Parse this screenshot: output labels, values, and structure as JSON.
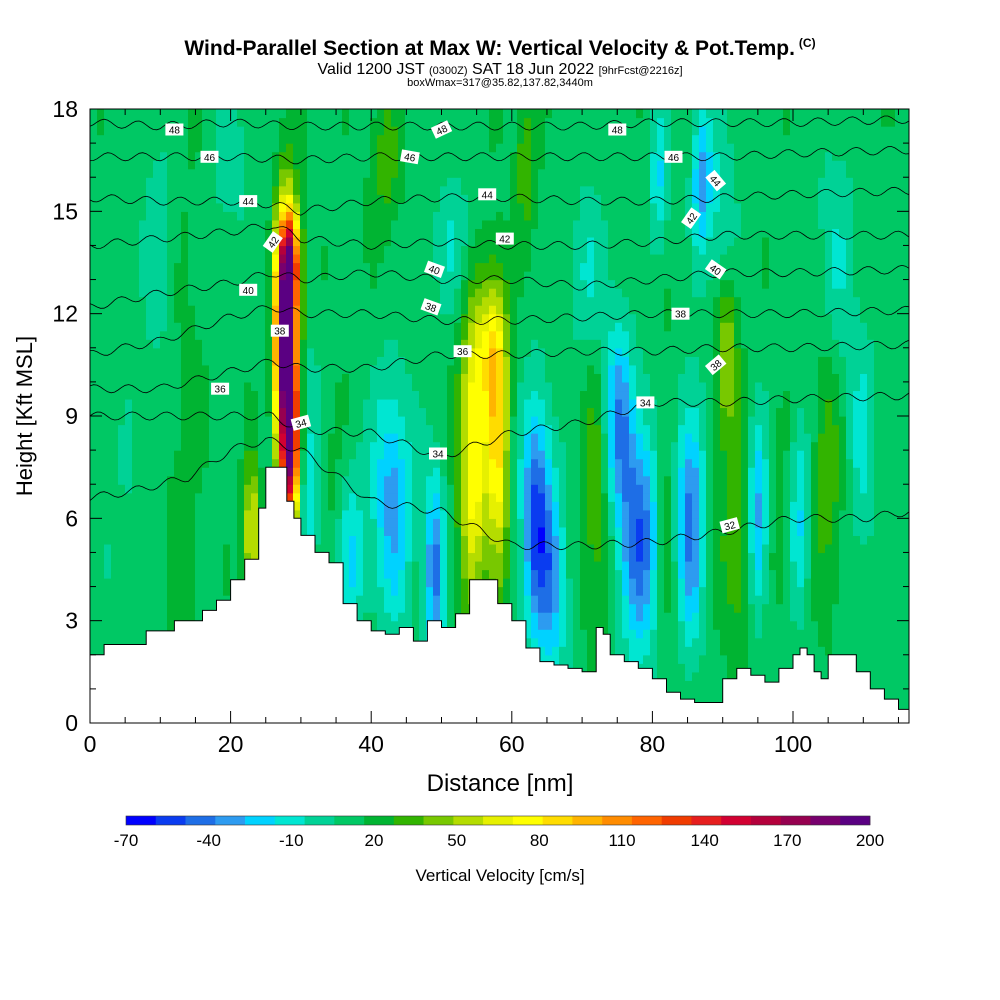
{
  "header": {
    "title": "Wind-Parallel Section at Max W: Vertical Velocity & Pot.Temp.",
    "copyright": "(C)",
    "valid_a": "Valid 1200 JST",
    "valid_b": "(0300Z)",
    "valid_c": "SAT 18 Jun 2022",
    "valid_d": "[9hrFcst@2216z]",
    "box": "boxWmax=317@35.82,137.82,3440m"
  },
  "chart_data": {
    "type": "heatmap",
    "xlabel": "Distance [nm]",
    "ylabel": "Height [Kft MSL]",
    "xlim": [
      0,
      116.5
    ],
    "ylim": [
      0,
      18
    ],
    "x_ticks": [
      0,
      20,
      40,
      60,
      80,
      100
    ],
    "y_ticks": [
      0,
      3,
      6,
      9,
      12,
      15,
      18
    ],
    "colorbar": {
      "label": "Vertical Velocity [cm/s]",
      "tick_labels": [
        "-70",
        "-40",
        "-10",
        "20",
        "50",
        "80",
        "110",
        "140",
        "170",
        "200"
      ],
      "min": -70,
      "max": 200,
      "colors": [
        "#0000ff",
        "#0a3cf0",
        "#1e6ee6",
        "#2d9bf0",
        "#00d2ff",
        "#00e6d2",
        "#00d296",
        "#00c864",
        "#00b432",
        "#32b400",
        "#78c800",
        "#b4dc00",
        "#e6f000",
        "#ffff00",
        "#ffdc00",
        "#ffb400",
        "#ff8c00",
        "#ff6400",
        "#f03c00",
        "#e61e1e",
        "#d20032",
        "#b4003c",
        "#960050",
        "#78006e",
        "#5a0082"
      ]
    },
    "terrain_height_kft": [
      [
        0,
        2.0
      ],
      [
        2,
        2.3
      ],
      [
        5,
        2.3
      ],
      [
        8,
        2.7
      ],
      [
        12,
        3.0
      ],
      [
        16,
        3.3
      ],
      [
        18,
        3.6
      ],
      [
        20,
        4.2
      ],
      [
        22,
        4.8
      ],
      [
        24,
        6.3
      ],
      [
        25,
        7.5
      ],
      [
        27,
        7.5
      ],
      [
        28,
        6.5
      ],
      [
        29,
        6.0
      ],
      [
        30,
        5.5
      ],
      [
        32,
        5.0
      ],
      [
        34,
        4.7
      ],
      [
        36,
        3.5
      ],
      [
        38,
        3.0
      ],
      [
        40,
        2.7
      ],
      [
        42,
        2.6
      ],
      [
        44,
        2.8
      ],
      [
        46,
        2.4
      ],
      [
        48,
        3.0
      ],
      [
        50,
        2.8
      ],
      [
        52,
        3.2
      ],
      [
        54,
        4.2
      ],
      [
        57,
        4.2
      ],
      [
        58,
        3.5
      ],
      [
        60,
        3.0
      ],
      [
        62,
        2.2
      ],
      [
        64,
        1.8
      ],
      [
        66,
        1.7
      ],
      [
        68,
        1.6
      ],
      [
        70,
        1.5
      ],
      [
        72,
        2.8
      ],
      [
        73,
        2.6
      ],
      [
        74,
        2.0
      ],
      [
        76,
        1.8
      ],
      [
        78,
        1.6
      ],
      [
        80,
        1.3
      ],
      [
        82,
        0.9
      ],
      [
        84,
        0.7
      ],
      [
        86,
        0.6
      ],
      [
        88,
        0.6
      ],
      [
        90,
        1.3
      ],
      [
        92,
        1.6
      ],
      [
        94,
        1.4
      ],
      [
        96,
        1.2
      ],
      [
        98,
        1.6
      ],
      [
        100,
        2.0
      ],
      [
        101,
        2.2
      ],
      [
        102,
        2.0
      ],
      [
        103,
        1.5
      ],
      [
        104,
        1.3
      ],
      [
        105,
        2.0
      ],
      [
        107,
        2.0
      ],
      [
        109,
        1.5
      ],
      [
        111,
        1.0
      ],
      [
        113,
        0.7
      ],
      [
        115,
        0.4
      ],
      [
        116.5,
        0.3
      ]
    ],
    "vertical_velocity_features": [
      {
        "x": 5,
        "z": 5.5,
        "sx": 2.5,
        "sz": 3,
        "w": -8
      },
      {
        "x": 13,
        "z": 9,
        "sx": 2,
        "sz": 8,
        "w": 8
      },
      {
        "x": 23,
        "z": 5.5,
        "sx": 0.8,
        "sz": 1.5,
        "w": 55
      },
      {
        "x": 26,
        "z": 11,
        "sx": 1,
        "sz": 3,
        "w": -20
      },
      {
        "x": 27.8,
        "z": 11,
        "sx": 1.2,
        "sz": 2.6,
        "w": 200
      },
      {
        "x": 28.6,
        "z": 8,
        "sx": 0.8,
        "sz": 1.5,
        "w": 120
      },
      {
        "x": 28.5,
        "z": 13.5,
        "sx": 1,
        "sz": 1,
        "w": 90
      },
      {
        "x": 31,
        "z": 7,
        "sx": 1.2,
        "sz": 3,
        "w": -25
      },
      {
        "x": 35,
        "z": 7,
        "sx": 1.5,
        "sz": 2,
        "w": 10
      },
      {
        "x": 37,
        "z": 5,
        "sx": 1.5,
        "sz": 2,
        "w": -30
      },
      {
        "x": 43,
        "z": 6.5,
        "sx": 2,
        "sz": 2.5,
        "w": -45
      },
      {
        "x": 49,
        "z": 4.5,
        "sx": 1,
        "sz": 2,
        "w": -55
      },
      {
        "x": 54.5,
        "z": 8,
        "sx": 1.4,
        "sz": 3,
        "w": 70
      },
      {
        "x": 58,
        "z": 8,
        "sx": 1.1,
        "sz": 3,
        "w": 65
      },
      {
        "x": 57,
        "z": 11,
        "sx": 1.5,
        "sz": 1.5,
        "w": 40
      },
      {
        "x": 63.5,
        "z": 6,
        "sx": 1.5,
        "sz": 2.5,
        "w": -65
      },
      {
        "x": 66,
        "z": 4,
        "sx": 1.5,
        "sz": 2,
        "w": -35
      },
      {
        "x": 72,
        "z": 7,
        "sx": 1.5,
        "sz": 3,
        "w": 25
      },
      {
        "x": 75,
        "z": 9,
        "sx": 1.5,
        "sz": 2,
        "w": -45
      },
      {
        "x": 78,
        "z": 5.5,
        "sx": 2,
        "sz": 2.5,
        "w": -60
      },
      {
        "x": 82,
        "z": 6.5,
        "sx": 1,
        "sz": 3,
        "w": 15
      },
      {
        "x": 85.5,
        "z": 6,
        "sx": 1.5,
        "sz": 2.5,
        "w": -55
      },
      {
        "x": 88,
        "z": 6,
        "sx": 1,
        "sz": 2,
        "w": 10
      },
      {
        "x": 90.5,
        "z": 11,
        "sx": 1.2,
        "sz": 2,
        "w": 45
      },
      {
        "x": 92,
        "z": 5,
        "sx": 1.5,
        "sz": 2,
        "w": 25
      },
      {
        "x": 87,
        "z": 16,
        "sx": 1,
        "sz": 1.5,
        "w": -45
      },
      {
        "x": 90,
        "z": 14,
        "sx": 1.5,
        "sz": 2.5,
        "w": -25
      },
      {
        "x": 95,
        "z": 6,
        "sx": 1,
        "sz": 2,
        "w": -45
      },
      {
        "x": 98,
        "z": 6,
        "sx": 1,
        "sz": 2,
        "w": 10
      },
      {
        "x": 101,
        "z": 6,
        "sx": 1,
        "sz": 2,
        "w": -30
      },
      {
        "x": 105,
        "z": 8,
        "sx": 1.5,
        "sz": 3,
        "w": 25
      },
      {
        "x": 110,
        "z": 8,
        "sx": 1.5,
        "sz": 2.5,
        "w": -20
      },
      {
        "x": 81,
        "z": 16,
        "sx": 1,
        "sz": 1.5,
        "w": -30
      },
      {
        "x": 62,
        "z": 16.5,
        "sx": 1,
        "sz": 1.5,
        "w": 25
      },
      {
        "x": 42,
        "z": 16.5,
        "sx": 1.5,
        "sz": 1.5,
        "w": 20
      },
      {
        "x": 52,
        "z": 14,
        "sx": 2,
        "sz": 1.5,
        "w": -20
      },
      {
        "x": 71,
        "z": 13,
        "sx": 2,
        "sz": 2,
        "w": -20
      },
      {
        "x": 106,
        "z": 13,
        "sx": 2,
        "sz": 3,
        "w": -20
      },
      {
        "x": 20,
        "z": 16.5,
        "sx": 2,
        "sz": 1.5,
        "w": -15
      },
      {
        "x": 10,
        "z": 14,
        "sx": 2,
        "sz": 3,
        "w": -15
      }
    ],
    "isentropes": [
      {
        "label": "32",
        "points": [
          [
            0,
            6.6
          ],
          [
            6,
            6.8
          ],
          [
            14,
            7.2
          ],
          [
            20,
            8.0
          ],
          [
            25,
            8.3
          ],
          [
            30,
            8.0
          ],
          [
            40,
            6.5
          ],
          [
            50,
            6.2
          ],
          [
            60,
            5.2
          ],
          [
            70,
            5.2
          ],
          [
            80,
            5.3
          ],
          [
            90,
            5.6
          ],
          [
            100,
            6.0
          ],
          [
            110,
            6.0
          ],
          [
            116.5,
            6.2
          ]
        ]
      },
      {
        "label": "34",
        "points": [
          [
            0,
            9.0
          ],
          [
            10,
            9.0
          ],
          [
            20,
            9.0
          ],
          [
            26,
            9.0
          ],
          [
            30,
            8.6
          ],
          [
            40,
            8.5
          ],
          [
            50,
            7.8
          ],
          [
            60,
            8.5
          ],
          [
            70,
            8.8
          ],
          [
            80,
            9.4
          ],
          [
            90,
            9.4
          ],
          [
            100,
            9.5
          ],
          [
            116.5,
            9.6
          ]
        ]
      },
      {
        "label": "36",
        "points": [
          [
            0,
            9.8
          ],
          [
            10,
            9.8
          ],
          [
            20,
            10.3
          ],
          [
            26,
            10.6
          ],
          [
            30,
            10.4
          ],
          [
            40,
            10.4
          ],
          [
            50,
            10.8
          ],
          [
            60,
            10.8
          ],
          [
            70,
            10.9
          ],
          [
            80,
            10.9
          ],
          [
            90,
            11.0
          ],
          [
            100,
            11.0
          ],
          [
            116.5,
            11.1
          ]
        ]
      },
      {
        "label": "38",
        "points": [
          [
            0,
            10.8
          ],
          [
            10,
            11.2
          ],
          [
            20,
            11.9
          ],
          [
            26,
            12.2
          ],
          [
            30,
            12.0
          ],
          [
            40,
            12.0
          ],
          [
            50,
            11.8
          ],
          [
            60,
            11.8
          ],
          [
            70,
            11.9
          ],
          [
            80,
            12.0
          ],
          [
            90,
            12.0
          ],
          [
            100,
            12.0
          ],
          [
            116.5,
            12.1
          ]
        ]
      },
      {
        "label": "40",
        "points": [
          [
            0,
            12.2
          ],
          [
            10,
            12.6
          ],
          [
            20,
            12.9
          ],
          [
            26,
            13.2
          ],
          [
            30,
            13.0
          ],
          [
            40,
            13.2
          ],
          [
            50,
            13.0
          ],
          [
            60,
            13.0
          ],
          [
            70,
            12.8
          ],
          [
            80,
            13.0
          ],
          [
            90,
            13.2
          ],
          [
            100,
            13.2
          ],
          [
            116.5,
            13.3
          ]
        ]
      },
      {
        "label": "42",
        "points": [
          [
            0,
            14.0
          ],
          [
            10,
            14.2
          ],
          [
            20,
            14.4
          ],
          [
            26,
            14.6
          ],
          [
            30,
            14.2
          ],
          [
            40,
            14.0
          ],
          [
            50,
            14.1
          ],
          [
            60,
            14.0
          ],
          [
            70,
            14.0
          ],
          [
            80,
            14.1
          ],
          [
            90,
            14.3
          ],
          [
            100,
            14.3
          ],
          [
            116.5,
            14.3
          ]
        ]
      },
      {
        "label": "44",
        "points": [
          [
            0,
            15.4
          ],
          [
            10,
            15.3
          ],
          [
            20,
            15.3
          ],
          [
            26,
            15.2
          ],
          [
            30,
            15.0
          ],
          [
            40,
            15.3
          ],
          [
            50,
            15.4
          ],
          [
            60,
            15.4
          ],
          [
            70,
            15.3
          ],
          [
            80,
            15.3
          ],
          [
            90,
            15.4
          ],
          [
            100,
            15.5
          ],
          [
            116.5,
            15.6
          ]
        ]
      },
      {
        "label": "46",
        "points": [
          [
            0,
            16.6
          ],
          [
            10,
            16.6
          ],
          [
            20,
            16.6
          ],
          [
            30,
            16.5
          ],
          [
            40,
            16.6
          ],
          [
            50,
            16.6
          ],
          [
            60,
            16.6
          ],
          [
            70,
            16.6
          ],
          [
            80,
            16.6
          ],
          [
            90,
            16.6
          ],
          [
            100,
            16.7
          ],
          [
            116.5,
            16.8
          ]
        ]
      },
      {
        "label": "48",
        "points": [
          [
            0,
            17.6
          ],
          [
            10,
            17.5
          ],
          [
            20,
            17.6
          ],
          [
            30,
            17.5
          ],
          [
            40,
            17.5
          ],
          [
            50,
            17.5
          ],
          [
            60,
            17.5
          ],
          [
            70,
            17.5
          ],
          [
            80,
            17.6
          ],
          [
            90,
            17.6
          ],
          [
            100,
            17.6
          ],
          [
            116.5,
            17.7
          ]
        ]
      }
    ],
    "isentrope_labels": [
      {
        "text": "48",
        "x": 12,
        "z": 17.4,
        "angle": 0
      },
      {
        "text": "48",
        "x": 50,
        "z": 17.4,
        "angle": -25
      },
      {
        "text": "48",
        "x": 75,
        "z": 17.4,
        "angle": 0
      },
      {
        "text": "46",
        "x": 17,
        "z": 16.6,
        "angle": 0
      },
      {
        "text": "46",
        "x": 45.5,
        "z": 16.6,
        "angle": 10
      },
      {
        "text": "46",
        "x": 83,
        "z": 16.6,
        "angle": 0
      },
      {
        "text": "44",
        "x": 22.5,
        "z": 15.3,
        "angle": 0
      },
      {
        "text": "44",
        "x": 56.5,
        "z": 15.5,
        "angle": 0
      },
      {
        "text": "44",
        "x": 89,
        "z": 15.9,
        "angle": 50
      },
      {
        "text": "42",
        "x": 26,
        "z": 14.1,
        "angle": -55
      },
      {
        "text": "42",
        "x": 59,
        "z": 14.2,
        "angle": 0
      },
      {
        "text": "42",
        "x": 85.5,
        "z": 14.8,
        "angle": -55
      },
      {
        "text": "40",
        "x": 22.5,
        "z": 12.7,
        "angle": 0
      },
      {
        "text": "40",
        "x": 49,
        "z": 13.3,
        "angle": 20
      },
      {
        "text": "40",
        "x": 89,
        "z": 13.3,
        "angle": 35
      },
      {
        "text": "38",
        "x": 27,
        "z": 11.5,
        "angle": 0
      },
      {
        "text": "38",
        "x": 48.5,
        "z": 12.2,
        "angle": 20
      },
      {
        "text": "38",
        "x": 84,
        "z": 12.0,
        "angle": 0
      },
      {
        "text": "38",
        "x": 89,
        "z": 10.5,
        "angle": -40
      },
      {
        "text": "36",
        "x": 18.5,
        "z": 9.8,
        "angle": 0
      },
      {
        "text": "36",
        "x": 53,
        "z": 10.9,
        "angle": 0
      },
      {
        "text": "34",
        "x": 30,
        "z": 8.8,
        "angle": -15
      },
      {
        "text": "34",
        "x": 49.5,
        "z": 7.9,
        "angle": 0
      },
      {
        "text": "34",
        "x": 79,
        "z": 9.4,
        "angle": 0
      },
      {
        "text": "32",
        "x": 91,
        "z": 5.8,
        "angle": -15
      }
    ]
  }
}
